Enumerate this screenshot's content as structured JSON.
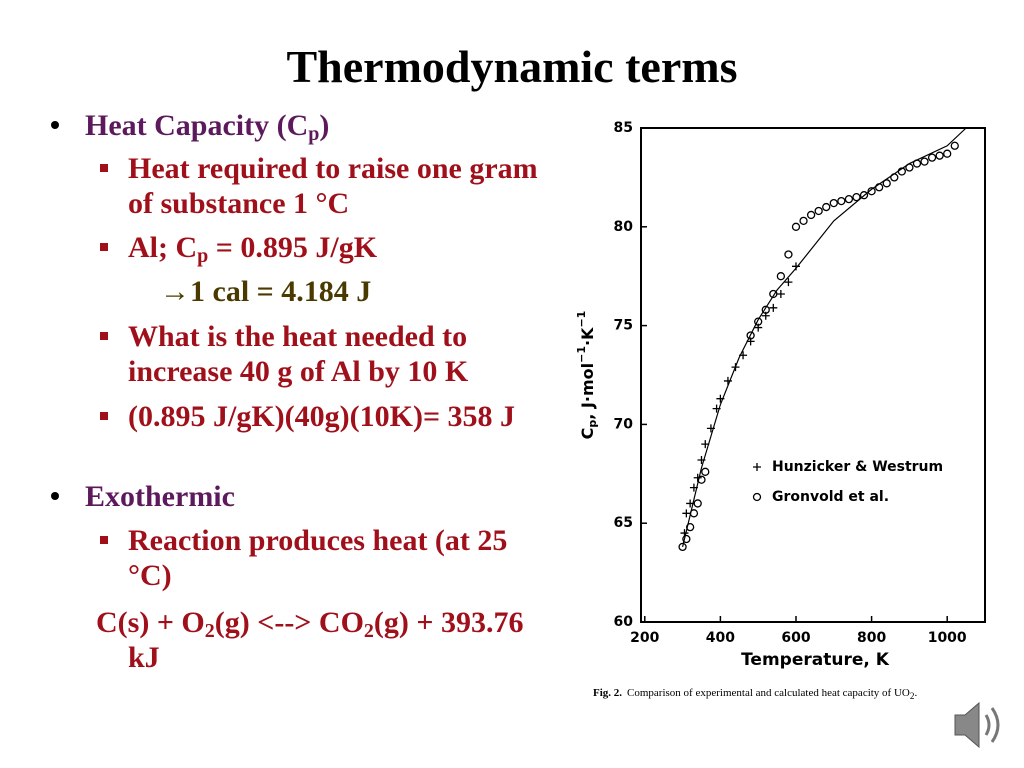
{
  "slide": {
    "title": "Thermodynamic terms",
    "items": [
      {
        "level": 1,
        "parts": [
          "Heat Capacity (C",
          "p",
          ")"
        ]
      },
      {
        "level": 2,
        "parts": [
          "Heat required to raise one gram of substance 1 °C"
        ]
      },
      {
        "level": 2,
        "parts": [
          "Al; C",
          "p",
          " = 0.895 J/gK"
        ]
      },
      {
        "level": 3,
        "parts": [
          "→1 cal = 4.184 J"
        ]
      },
      {
        "level": 2,
        "parts": [
          "What is the heat needed to increase 40 g of Al by 10 K"
        ]
      },
      {
        "level": 2,
        "parts": [
          "(0.895 J/gK)(40g)(10K)= 358 J"
        ]
      },
      {
        "level": 1,
        "parts": [
          "Exothermic"
        ]
      },
      {
        "level": 2,
        "parts": [
          "Reaction produces heat (at 25 °C)"
        ]
      },
      {
        "level": 0,
        "parts": [
          "C(s) + O",
          "2",
          "(g) <--> CO",
          "2",
          "(g) + 393.76 kJ"
        ]
      }
    ],
    "caption": {
      "label": "Fig. 2.",
      "parts": [
        "Comparison of experimental and calculated heat capacity of UO",
        "2",
        "."
      ]
    }
  },
  "chart_data": {
    "type": "scatter",
    "xlabel": "Temperature, K",
    "ylabel": [
      "C",
      "p",
      ", J·mol",
      "−1",
      "·K",
      "−1"
    ],
    "xlim": [
      190,
      1100
    ],
    "ylim": [
      60,
      85
    ],
    "xticks": [
      200,
      400,
      600,
      800,
      1000
    ],
    "yticks": [
      60,
      65,
      70,
      75,
      80,
      85
    ],
    "series": [
      {
        "name": "Hunzicker & Westrum",
        "marker": "+",
        "color": "#000000",
        "x": [
          305,
          310,
          320,
          330,
          340,
          350,
          360,
          375,
          390,
          400,
          420,
          440,
          460,
          480,
          500,
          520,
          540,
          560,
          580,
          600
        ],
        "values": [
          64.5,
          65.5,
          66,
          66.8,
          67.3,
          68.2,
          69,
          69.8,
          70.8,
          71.3,
          72.2,
          72.9,
          73.5,
          74.2,
          74.9,
          75.5,
          75.9,
          76.6,
          77.2,
          78
        ]
      },
      {
        "name": "Gronvold et al.",
        "marker": "o",
        "color": "#000000",
        "x": [
          300,
          310,
          320,
          330,
          340,
          350,
          360,
          480,
          500,
          520,
          540,
          560,
          580,
          600,
          620,
          640,
          660,
          680,
          700,
          720,
          740,
          760,
          780,
          800,
          820,
          840,
          860,
          880,
          900,
          920,
          940,
          960,
          980,
          1000,
          1020
        ],
        "values": [
          63.8,
          64.2,
          64.8,
          65.5,
          66,
          67.2,
          67.6,
          74.5,
          75.2,
          75.8,
          76.6,
          77.5,
          78.6,
          80,
          80.3,
          80.6,
          80.8,
          81,
          81.2,
          81.3,
          81.4,
          81.5,
          81.6,
          81.8,
          82,
          82.2,
          82.5,
          82.8,
          83,
          83.2,
          83.3,
          83.5,
          83.6,
          83.7,
          84.1
        ]
      }
    ],
    "curve": {
      "color": "#000000",
      "x": [
        300,
        350,
        400,
        450,
        500,
        550,
        600,
        700,
        800,
        900,
        1000,
        1050
      ],
      "values": [
        63.8,
        67.8,
        71,
        73.4,
        75.3,
        76.8,
        77.9,
        80.3,
        81.9,
        83.2,
        84.1,
        85
      ]
    }
  }
}
